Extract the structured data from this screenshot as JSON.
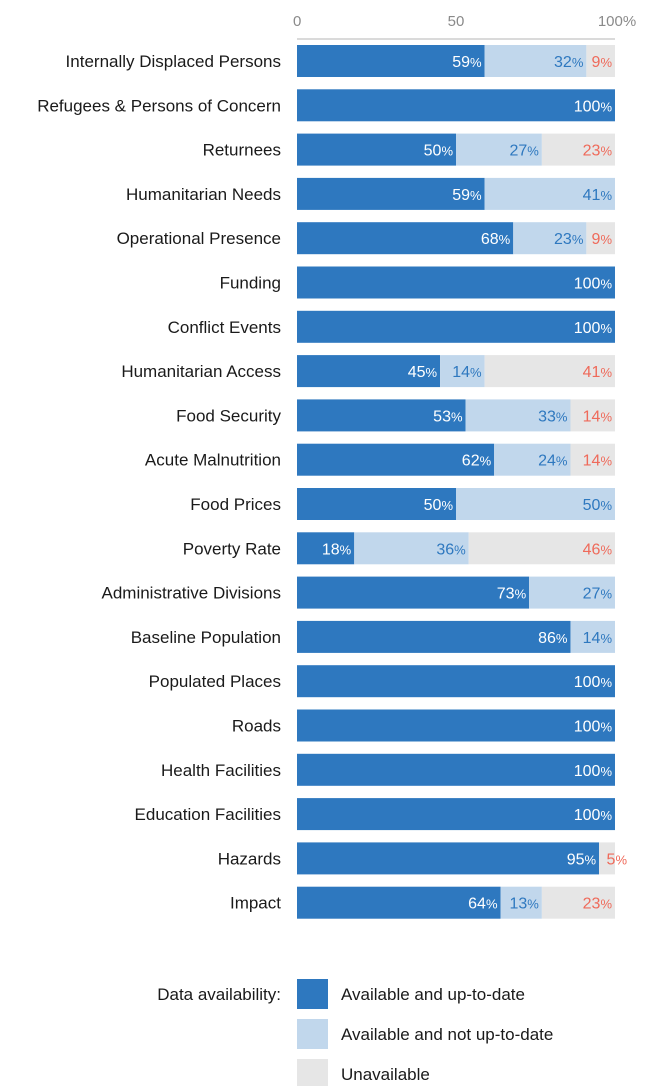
{
  "chart_data": {
    "type": "bar",
    "orientation": "horizontal",
    "stacked": true,
    "xlim": [
      0,
      100
    ],
    "x_ticks": [
      "0",
      "50",
      "100%"
    ],
    "value_suffix": "%",
    "categories": [
      "Internally Displaced Persons",
      "Refugees & Persons of Concern",
      "Returnees",
      "Humanitarian Needs",
      "Operational Presence",
      "Funding",
      "Conflict Events",
      "Humanitarian Access",
      "Food Security",
      "Acute Malnutrition",
      "Food Prices",
      "Poverty Rate",
      "Administrative Divisions",
      "Baseline Population",
      "Populated Places",
      "Roads",
      "Health Facilities",
      "Education Facilities",
      "Hazards",
      "Impact"
    ],
    "series": [
      {
        "name": "Available and up-to-date",
        "color": "#2e78bf",
        "label_color": "#ffffff",
        "values": [
          59,
          100,
          50,
          59,
          68,
          100,
          100,
          45,
          53,
          62,
          50,
          18,
          73,
          86,
          100,
          100,
          100,
          100,
          95,
          64
        ]
      },
      {
        "name": "Available and not up-to-date",
        "color": "#c1d7ec",
        "label_color": "#2e78bf",
        "values": [
          32,
          0,
          27,
          41,
          23,
          0,
          0,
          14,
          33,
          24,
          50,
          36,
          27,
          14,
          0,
          0,
          0,
          0,
          0,
          13
        ]
      },
      {
        "name": "Unavailable",
        "color": "#e6e6e6",
        "label_color": "#ef6a5a",
        "values": [
          9,
          0,
          23,
          0,
          9,
          0,
          0,
          41,
          14,
          14,
          0,
          46,
          0,
          0,
          0,
          0,
          0,
          0,
          5,
          23
        ]
      }
    ],
    "legend": {
      "title": "Data availability:",
      "position": "bottom"
    },
    "grid": false
  }
}
